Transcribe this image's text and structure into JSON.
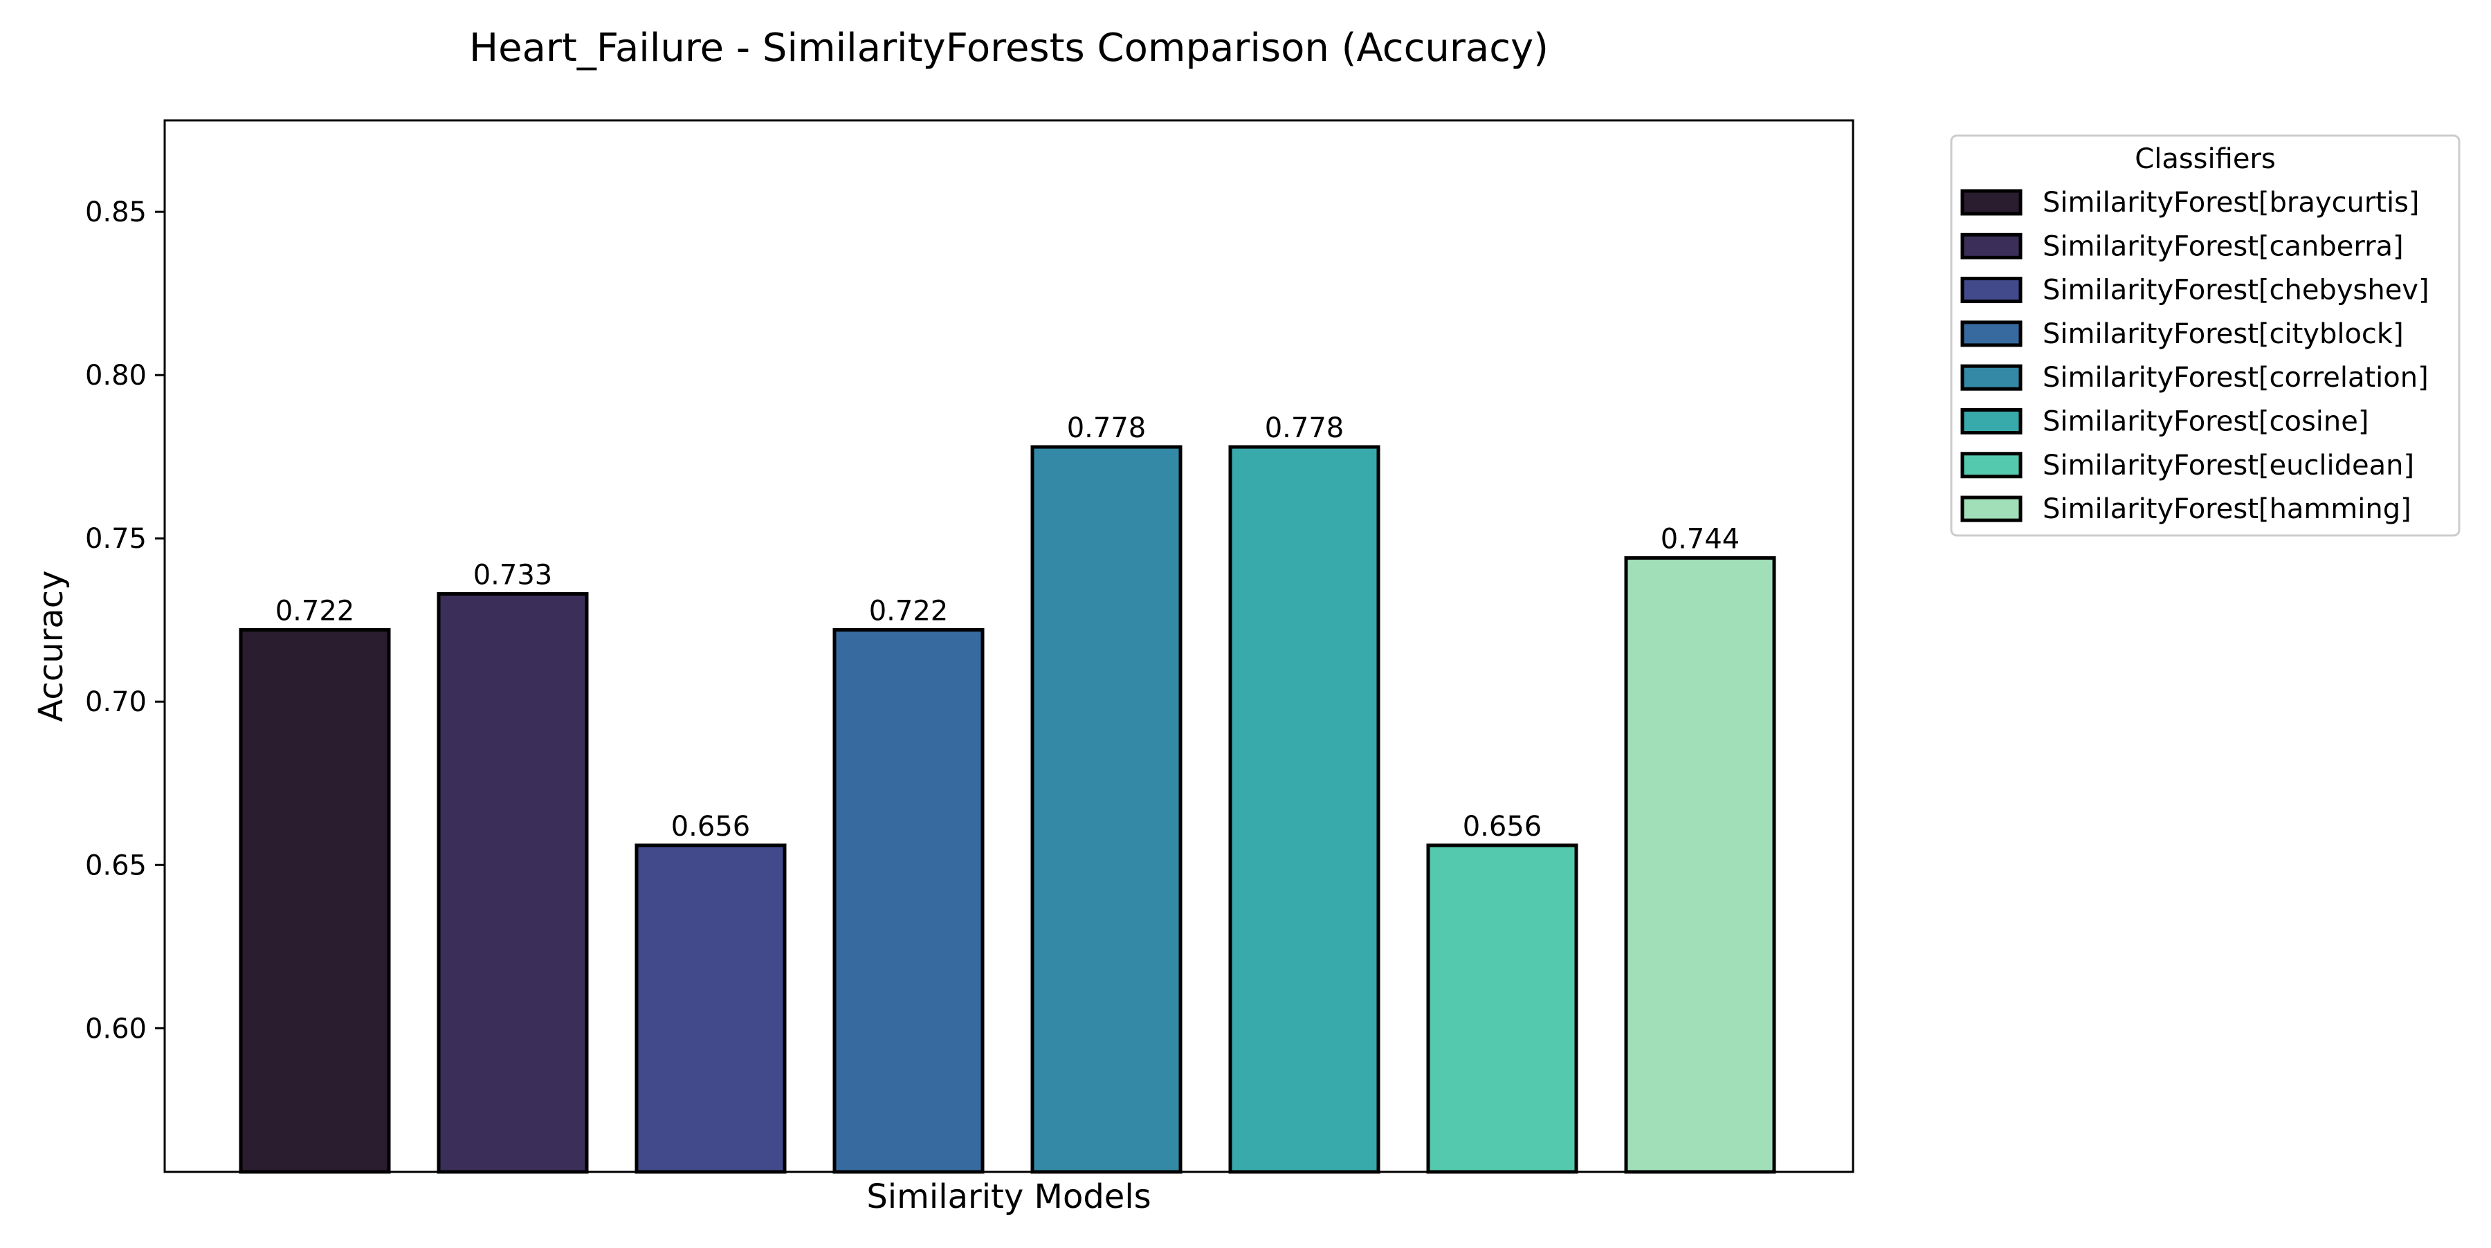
{
  "chart_data": {
    "type": "bar",
    "title": "Heart_Failure - SimilarityForests Comparison (Accuracy)",
    "xlabel": "Similarity Models",
    "ylabel": "Accuracy",
    "ylim": [
      0.556,
      0.878
    ],
    "yticks": [
      0.6,
      0.65,
      0.7,
      0.75,
      0.8,
      0.85
    ],
    "ytick_labels": [
      "0.60",
      "0.65",
      "0.70",
      "0.75",
      "0.80",
      "0.85"
    ],
    "grid": false,
    "categories": [
      "SimilarityForest[braycurtis]",
      "SimilarityForest[canberra]",
      "SimilarityForest[chebyshev]",
      "SimilarityForest[cityblock]",
      "SimilarityForest[correlation]",
      "SimilarityForest[cosine]",
      "SimilarityForest[euclidean]",
      "SimilarityForest[hamming]"
    ],
    "values": [
      0.722,
      0.733,
      0.656,
      0.722,
      0.778,
      0.778,
      0.656,
      0.744
    ],
    "value_labels": [
      "0.722",
      "0.733",
      "0.656",
      "0.722",
      "0.778",
      "0.778",
      "0.656",
      "0.744"
    ],
    "colors": [
      "#2a1d2f",
      "#3b2f5a",
      "#424a8c",
      "#376ba0",
      "#348aa6",
      "#38aaac",
      "#55c9ad",
      "#a1dfb9"
    ],
    "legend": {
      "title": "Classifiers",
      "placement": "outside-top-right"
    }
  }
}
